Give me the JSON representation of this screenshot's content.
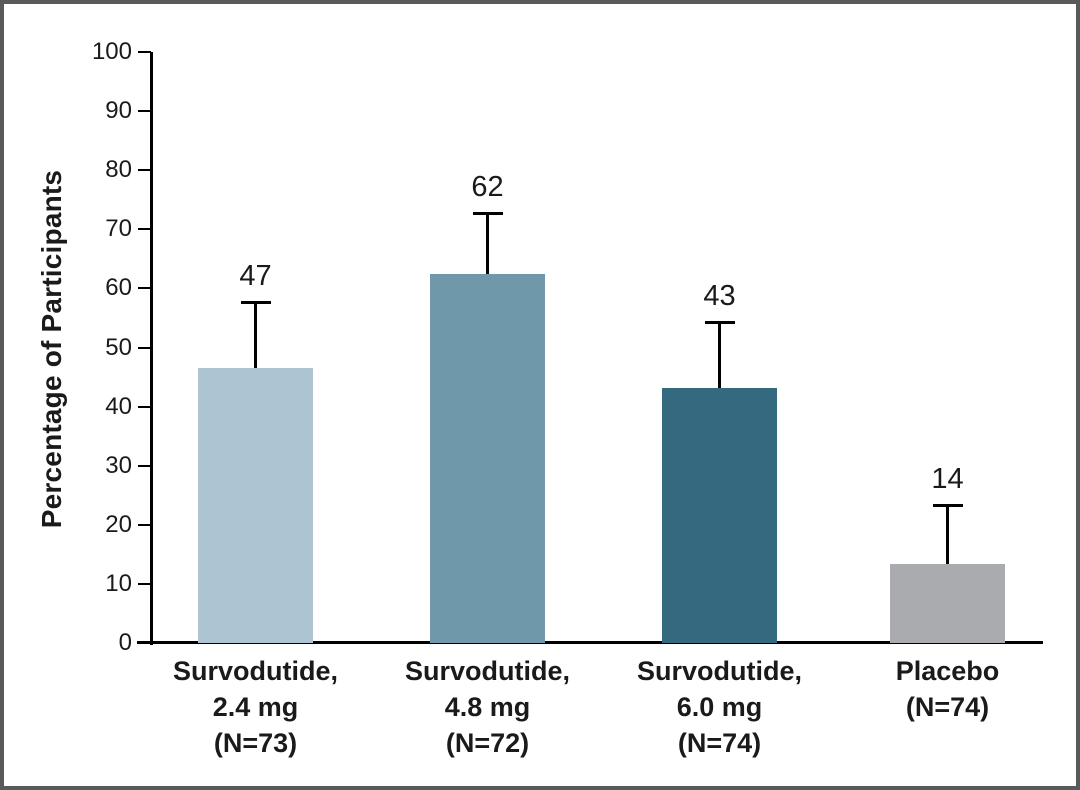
{
  "figure": {
    "border_color": "#58595b",
    "background_color": "#ffffff",
    "axis_color": "#000000",
    "text_color": "#1a1a1a"
  },
  "chart_data": {
    "type": "bar",
    "title": "",
    "xlabel": "",
    "ylabel": "Percentage of Participants",
    "ylim": [
      0,
      100
    ],
    "ytick_step": 10,
    "ytick_labels": [
      "0",
      "10",
      "20",
      "30",
      "40",
      "50",
      "60",
      "70",
      "80",
      "90",
      "100"
    ],
    "grid": false,
    "legend": null,
    "categories": [
      "Survodutide,\n2.4 mg\n(N=73)",
      "Survodutide,\n4.8 mg\n(N=72)",
      "Survodutide,\n6.0 mg\n(N=74)",
      "Placebo\n(N=74)"
    ],
    "values": [
      47,
      62,
      43,
      14
    ],
    "value_labels": [
      "47",
      "62",
      "43",
      "14"
    ],
    "bar_heights_pct": [
      46.5,
      62.4,
      43.1,
      13.4
    ],
    "error_bar_top_pct": [
      57.7,
      72.8,
      54.3,
      23.3
    ],
    "bar_colors": [
      "#adc4d2",
      "#6f98ab",
      "#35697f",
      "#aaabae"
    ]
  }
}
